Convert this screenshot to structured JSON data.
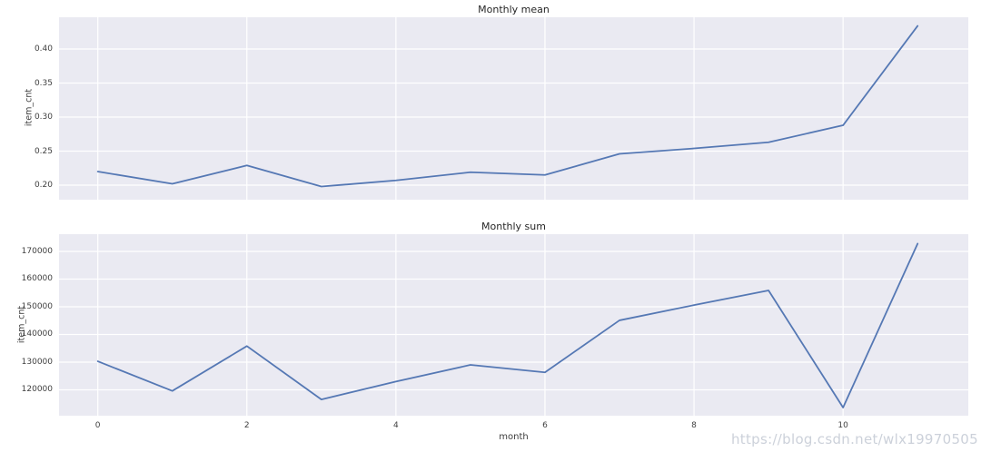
{
  "figure": {
    "watermark": "https://blog.csdn.net/wlx19970505"
  },
  "colors": {
    "line": "#5578b4",
    "plot_bg": "#eaeaf2",
    "grid": "#ffffff",
    "text": "#3f3f3f",
    "watermark": "#ccd1da"
  },
  "chart_data": [
    {
      "type": "line",
      "title": "Monthly mean",
      "xlabel": "",
      "ylabel": "item_cnt",
      "x": [
        0,
        1,
        2,
        3,
        4,
        5,
        6,
        7,
        8,
        9,
        10,
        11
      ],
      "values": [
        0.22,
        0.202,
        0.229,
        0.198,
        0.207,
        0.219,
        0.215,
        0.246,
        0.254,
        0.263,
        0.288,
        0.434
      ],
      "xlim": [
        -0.52,
        11.68
      ],
      "ylim": [
        0.1787,
        0.4467
      ],
      "xticks": [
        0,
        2,
        4,
        6,
        8,
        10
      ],
      "xtick_labels": [],
      "yticks": [
        0.2,
        0.25,
        0.3,
        0.35,
        0.4
      ],
      "ytick_labels": [
        "0.20",
        "0.25",
        "0.30",
        "0.35",
        "0.40"
      ],
      "grid": true,
      "legend": false
    },
    {
      "type": "line",
      "title": "Monthly sum",
      "xlabel": "month",
      "ylabel": "item_cnt",
      "x": [
        0,
        1,
        2,
        3,
        4,
        5,
        6,
        7,
        8,
        9,
        10,
        11
      ],
      "values": [
        130300,
        119600,
        135800,
        116500,
        123000,
        129000,
        126300,
        145100,
        150600,
        155900,
        113600,
        172800
      ],
      "xlim": [
        -0.52,
        11.68
      ],
      "ylim": [
        110650,
        176230
      ],
      "xticks": [
        0,
        2,
        4,
        6,
        8,
        10
      ],
      "xtick_labels": [
        "0",
        "2",
        "4",
        "6",
        "8",
        "10"
      ],
      "yticks": [
        120000,
        130000,
        140000,
        150000,
        160000,
        170000
      ],
      "ytick_labels": [
        "120000",
        "130000",
        "140000",
        "150000",
        "160000",
        "170000"
      ],
      "grid": true,
      "legend": false
    }
  ]
}
